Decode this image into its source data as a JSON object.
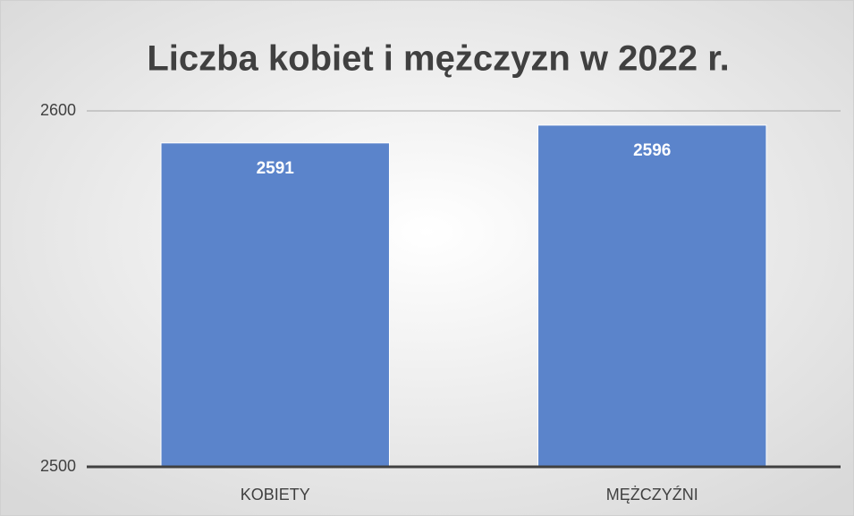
{
  "chart_data": {
    "type": "bar",
    "title": "Liczba kobiet i mężczyzn w 2022 r.",
    "categories": [
      "KOBIETY",
      "MĘŻCZYŹNI"
    ],
    "values": [
      2591,
      2596
    ],
    "color": "#5b84cb",
    "ylim": [
      2500,
      2600
    ],
    "yticks": [
      2500,
      2600
    ],
    "grid": true
  }
}
